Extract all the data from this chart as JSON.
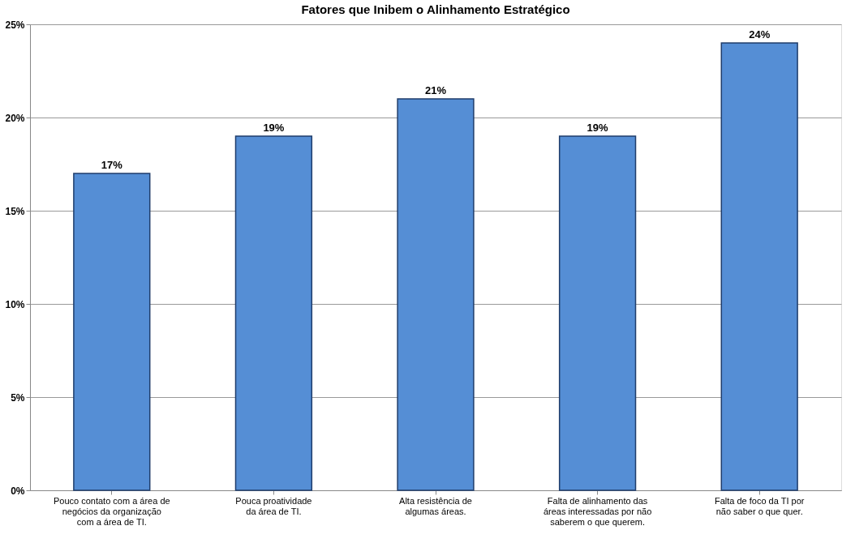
{
  "chart_data": {
    "type": "bar",
    "title": "Fatores que Inibem o Alinhamento Estratégico",
    "categories": [
      "Pouco contato com a área de\nnegócios da organização\ncom a área de TI.",
      "Pouca proatividade\nda área de TI.",
      "Alta resistência de\nalgumas áreas.",
      "Falta de alinhamento das\náreas interessadas por não\nsaberem o que querem.",
      "Falta de foco da TI por\nnão saber o que quer."
    ],
    "values": [
      17,
      19,
      21,
      19,
      24
    ],
    "color": "#558ed5",
    "value_labels": [
      "17%",
      "19%",
      "21%",
      "19%",
      "24%"
    ],
    "ylim": [
      0,
      25
    ],
    "yticks": [
      {
        "value": 0,
        "label": "0%"
      },
      {
        "value": 5,
        "label": "5%"
      },
      {
        "value": 10,
        "label": "10%"
      },
      {
        "value": 15,
        "label": "15%"
      },
      {
        "value": 20,
        "label": "20%"
      },
      {
        "value": 25,
        "label": "25%"
      }
    ],
    "grid": "y"
  }
}
